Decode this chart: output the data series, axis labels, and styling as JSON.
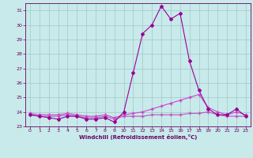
{
  "x": [
    0,
    1,
    2,
    3,
    4,
    5,
    6,
    7,
    8,
    9,
    10,
    11,
    12,
    13,
    14,
    15,
    16,
    17,
    18,
    19,
    20,
    21,
    22,
    23
  ],
  "line1": [
    23.8,
    23.7,
    23.6,
    23.5,
    23.7,
    23.7,
    23.5,
    23.5,
    23.6,
    23.3,
    24.0,
    26.7,
    29.4,
    30.0,
    31.3,
    30.4,
    30.8,
    27.5,
    25.5,
    24.2,
    23.8,
    23.8,
    24.2,
    23.7
  ],
  "line2": [
    23.8,
    23.7,
    23.7,
    23.7,
    23.8,
    23.7,
    23.6,
    23.6,
    23.7,
    23.5,
    23.7,
    23.7,
    23.7,
    23.8,
    23.8,
    23.8,
    23.8,
    23.9,
    23.9,
    24.0,
    23.8,
    23.7,
    23.7,
    23.7
  ],
  "line3": [
    23.9,
    23.8,
    23.8,
    23.8,
    23.9,
    23.8,
    23.7,
    23.7,
    23.8,
    23.6,
    23.8,
    23.9,
    24.0,
    24.2,
    24.4,
    24.6,
    24.8,
    25.0,
    25.2,
    24.3,
    24.0,
    23.8,
    24.0,
    23.8
  ],
  "line_color1": "#990099",
  "line_color2": "#bb55bb",
  "line_color3": "#cc44cc",
  "bg_color": "#c8eaea",
  "grid_color": "#a0c8c8",
  "xlabel": "Windchill (Refroidissement éolien,°C)",
  "ylim": [
    23.0,
    31.5
  ],
  "xlim": [
    -0.5,
    23.5
  ],
  "yticks": [
    23,
    24,
    25,
    26,
    27,
    28,
    29,
    30,
    31
  ],
  "xticks": [
    0,
    1,
    2,
    3,
    4,
    5,
    6,
    7,
    8,
    9,
    10,
    11,
    12,
    13,
    14,
    15,
    16,
    17,
    18,
    19,
    20,
    21,
    22,
    23
  ],
  "font_color": "#660066"
}
